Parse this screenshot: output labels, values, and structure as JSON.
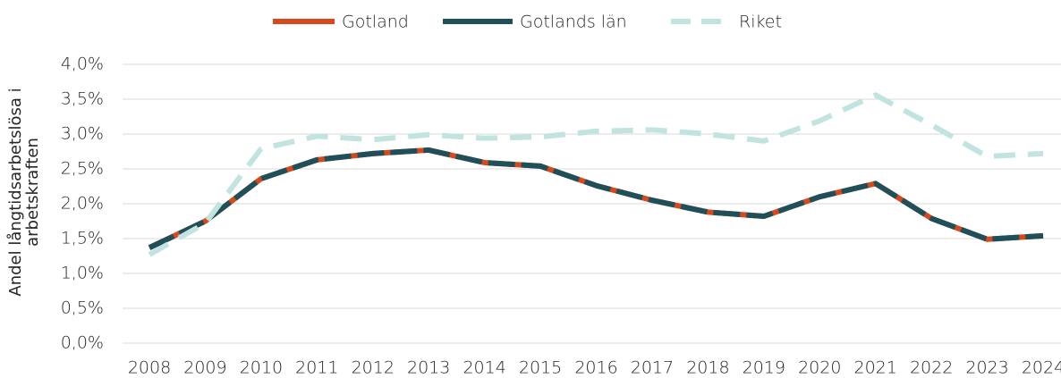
{
  "chart_data": {
    "type": "line",
    "y_axis_label": "Andel långtidsarbetslösa i arbetskraften",
    "categories": [
      "2008",
      "2009",
      "2010",
      "2011",
      "2012",
      "2013",
      "2014",
      "2015",
      "2016",
      "2017",
      "2018",
      "2019",
      "2020",
      "2021",
      "2022",
      "2023",
      "2024"
    ],
    "series": [
      {
        "name": "Gotland",
        "color": "#d9481b",
        "style": "solid",
        "values": [
          1.37,
          1.75,
          2.36,
          2.63,
          2.72,
          2.77,
          2.59,
          2.54,
          2.26,
          2.05,
          1.88,
          1.82,
          2.1,
          2.29,
          1.79,
          1.49,
          1.54
        ]
      },
      {
        "name": "Gotlands län",
        "color": "#1f5059",
        "style": "dashed",
        "values": [
          1.37,
          1.75,
          2.36,
          2.63,
          2.72,
          2.77,
          2.59,
          2.54,
          2.26,
          2.05,
          1.88,
          1.82,
          2.1,
          2.29,
          1.79,
          1.49,
          1.54
        ]
      },
      {
        "name": "Riket",
        "color": "#c2e4e0",
        "style": "dashed",
        "values": [
          1.27,
          1.72,
          2.79,
          2.97,
          2.92,
          2.99,
          2.94,
          2.96,
          3.04,
          3.06,
          3.0,
          2.9,
          3.19,
          3.56,
          3.13,
          2.68,
          2.72
        ]
      }
    ],
    "ylim": [
      0,
      4
    ],
    "yticks": [
      {
        "value": 0,
        "label": "0,0%"
      },
      {
        "value": 0.5,
        "label": "0,5%"
      },
      {
        "value": 1,
        "label": "1,0%"
      },
      {
        "value": 1.5,
        "label": "1,5%"
      },
      {
        "value": 2,
        "label": "2,0%"
      },
      {
        "value": 2.5,
        "label": "2,5%"
      },
      {
        "value": 3,
        "label": "3,0%"
      },
      {
        "value": 3.5,
        "label": "3,5%"
      },
      {
        "value": 4,
        "label": "4,0%"
      }
    ],
    "grid": true,
    "legend": "top"
  }
}
